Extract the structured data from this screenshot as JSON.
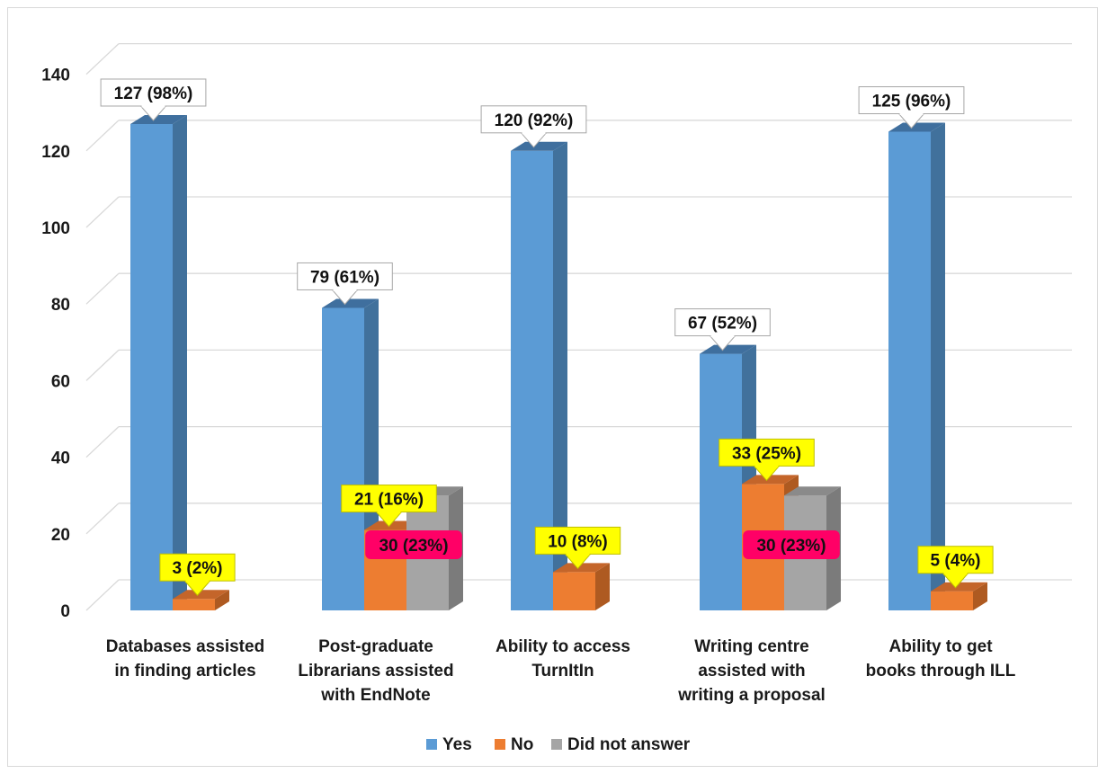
{
  "chart_data": {
    "type": "bar",
    "categories": [
      [
        "Databases assisted",
        "in finding articles"
      ],
      [
        "Post-graduate",
        "Librarians assisted",
        "with EndNote"
      ],
      [
        "Ability to access",
        "TurnItIn"
      ],
      [
        "Writing centre",
        "assisted with",
        "writing a proposal"
      ],
      [
        "Ability to get",
        "books through ILL"
      ]
    ],
    "series": [
      {
        "name": "Yes",
        "color": "#5b9bd5",
        "side": "#41719c",
        "top": "#3f6f9e",
        "values": [
          127,
          79,
          120,
          67,
          125
        ],
        "labels": [
          "127 (98%)",
          "79 (61%)",
          "120 (92%)",
          "67 (52%)",
          "125 (96%)"
        ]
      },
      {
        "name": "No",
        "color": "#ed7d31",
        "side": "#ae5a21",
        "top": "#c4652a",
        "values": [
          3,
          21,
          10,
          33,
          5
        ],
        "labels": [
          "3 (2%)",
          "21 (16%)",
          "10 (8%)",
          "33 (25%)",
          "5 (4%)"
        ]
      },
      {
        "name": "Did not answer",
        "color": "#a5a5a5",
        "side": "#7b7b7b",
        "top": "#8a8a8a",
        "values": [
          null,
          30,
          null,
          30,
          null
        ],
        "labels": [
          null,
          "30 (23%)",
          null,
          "30 (23%)",
          null
        ]
      }
    ],
    "yticks": [
      0,
      20,
      40,
      60,
      80,
      100,
      120,
      140
    ],
    "ylim": [
      0,
      140
    ],
    "grid": true,
    "legend_position": "bottom",
    "label_colors": {
      "Yes": "#ffffff",
      "No": "#ffff00",
      "Did not answer": "#ff0066"
    }
  }
}
